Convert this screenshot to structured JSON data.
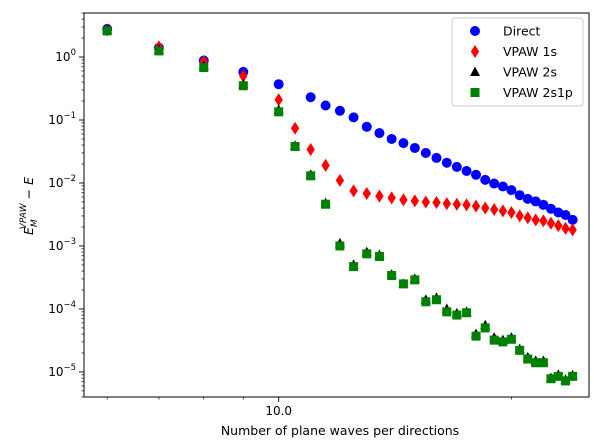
{
  "chart_data": {
    "type": "scatter",
    "x_scale": "log",
    "y_scale": "log",
    "xlim": [
      5.6,
      25.2
    ],
    "ylim": [
      4e-06,
      5
    ],
    "xlabel": "Number of plane waves per directions",
    "ylabel": "E_M^{VPAW} − E",
    "ylabel_parts": {
      "main": "E",
      "sub": "M",
      "sup": "VPAW",
      "rest": " − E"
    },
    "x_tick_labels": [
      {
        "value": 10,
        "label": "10.0"
      }
    ],
    "y_tick_labels": [
      {
        "value": 1e-05,
        "base": "10",
        "exp": "−5"
      },
      {
        "value": 0.0001,
        "base": "10",
        "exp": "−4"
      },
      {
        "value": 0.001,
        "base": "10",
        "exp": "−3"
      },
      {
        "value": 0.01,
        "base": "10",
        "exp": "−2"
      },
      {
        "value": 0.1,
        "base": "10",
        "exp": "−1"
      },
      {
        "value": 1,
        "base": "10",
        "exp": "0"
      }
    ],
    "grid": false,
    "legend_position": "top-right",
    "series": [
      {
        "name": "Direct",
        "color": "#0000ff",
        "marker": "circle",
        "x": [
          6,
          7,
          8,
          9,
          10,
          11,
          11.5,
          12,
          12.5,
          13,
          13.5,
          14,
          14.5,
          15,
          15.5,
          16,
          16.5,
          17,
          17.5,
          18,
          18.5,
          19,
          19.5,
          20,
          20.5,
          21,
          21.5,
          22,
          22.5,
          23,
          23.5,
          24
        ],
        "y": [
          2.8,
          1.4,
          0.88,
          0.58,
          0.37,
          0.23,
          0.17,
          0.14,
          0.11,
          0.078,
          0.062,
          0.05,
          0.043,
          0.036,
          0.03,
          0.025,
          0.021,
          0.018,
          0.0155,
          0.0135,
          0.0112,
          0.0098,
          0.0088,
          0.0077,
          0.0064,
          0.0056,
          0.0051,
          0.0045,
          0.0039,
          0.0034,
          0.0031,
          0.0026
        ]
      },
      {
        "name": "VPAW 1s",
        "color": "#ff0000",
        "marker": "diamond",
        "x": [
          6,
          7,
          8,
          9,
          10,
          10.5,
          11,
          11.5,
          12,
          12.5,
          13,
          13.5,
          14,
          14.5,
          15,
          15.5,
          16,
          16.5,
          17,
          17.5,
          18,
          18.5,
          19,
          19.5,
          20,
          20.5,
          21,
          21.5,
          22,
          22.5,
          23,
          23.5,
          24
        ],
        "y": [
          2.7,
          1.45,
          0.85,
          0.5,
          0.21,
          0.074,
          0.034,
          0.019,
          0.011,
          0.0075,
          0.0068,
          0.0062,
          0.0058,
          0.0054,
          0.0052,
          0.005,
          0.0049,
          0.0047,
          0.0046,
          0.0045,
          0.0043,
          0.004,
          0.0038,
          0.0036,
          0.0034,
          0.003,
          0.0028,
          0.0026,
          0.0025,
          0.0023,
          0.0021,
          0.0019,
          0.0018
        ]
      },
      {
        "name": "VPAW 2s",
        "color": "#000000",
        "marker": "triangle",
        "x": [
          6,
          7,
          8,
          9,
          10,
          10.5,
          11,
          11.5,
          12,
          12.5,
          13,
          13.5,
          14,
          14.5,
          15,
          15.5,
          16,
          16.5,
          17,
          17.5,
          18,
          18.5,
          19,
          19.5,
          20,
          20.5,
          21,
          21.5,
          22,
          22.5,
          23,
          23.5,
          24
        ],
        "y": [
          2.7,
          1.3,
          0.72,
          0.37,
          0.145,
          0.039,
          0.0135,
          0.0048,
          0.0011,
          0.0005,
          0.0008,
          0.00072,
          0.00035,
          0.00025,
          0.0003,
          0.00014,
          0.00015,
          0.0001,
          8.5e-05,
          9e-05,
          4e-05,
          5.5e-05,
          3.5e-05,
          3.2e-05,
          3.5e-05,
          2.3e-05,
          1.7e-05,
          1.5e-05,
          1.5e-05,
          8e-06,
          9e-06,
          7.5e-06,
          8.8e-06
        ]
      },
      {
        "name": "VPAW 2s1p",
        "color": "#008000",
        "marker": "square",
        "x": [
          6,
          7,
          8,
          9,
          10,
          10.5,
          11,
          11.5,
          12,
          12.5,
          13,
          13.5,
          14,
          14.5,
          15,
          15.5,
          16,
          16.5,
          17,
          17.5,
          18,
          18.5,
          19,
          19.5,
          20,
          20.5,
          21,
          21.5,
          22,
          22.5,
          23,
          23.5,
          24
        ],
        "y": [
          2.6,
          1.25,
          0.68,
          0.35,
          0.135,
          0.038,
          0.013,
          0.0046,
          0.001,
          0.00047,
          0.00075,
          0.00068,
          0.00034,
          0.00025,
          0.00029,
          0.00013,
          0.00014,
          9e-05,
          8e-05,
          8.7e-05,
          3.7e-05,
          5e-05,
          3.2e-05,
          3e-05,
          3.3e-05,
          2.2e-05,
          1.6e-05,
          1.4e-05,
          1.4e-05,
          7.8e-06,
          8.5e-06,
          7.2e-06,
          8.5e-06
        ]
      }
    ]
  }
}
